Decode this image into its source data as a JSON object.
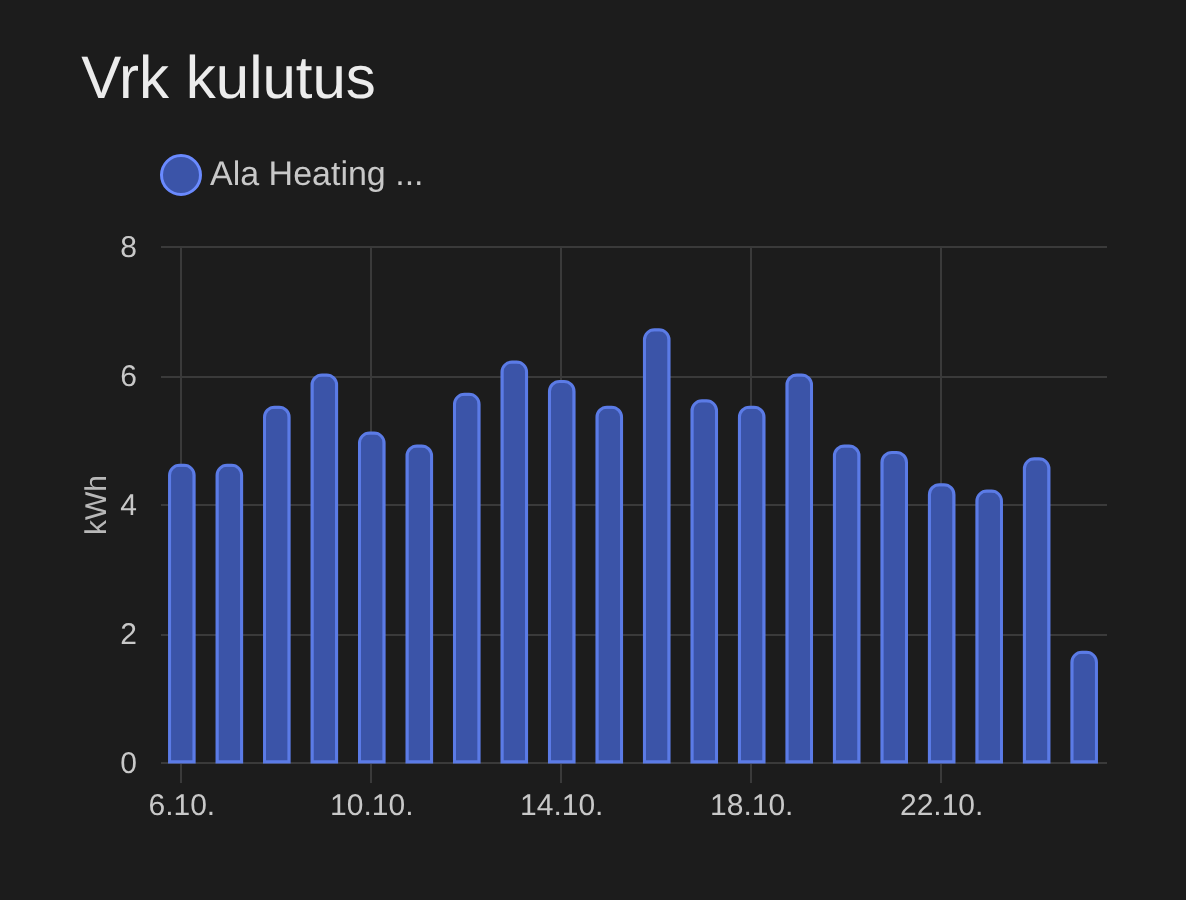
{
  "chart_data": {
    "type": "bar",
    "title": "Vrk kulutus",
    "ylabel": "kWh",
    "categories": [
      "6.10.",
      null,
      null,
      null,
      "10.10.",
      null,
      null,
      null,
      "14.10.",
      null,
      null,
      null,
      "18.10.",
      null,
      null,
      null,
      "22.10.",
      null,
      null,
      null
    ],
    "series": [
      {
        "name": "Ala Heating ...",
        "color": "#3b54a8",
        "values": [
          4.6,
          4.6,
          5.5,
          6.0,
          5.1,
          4.9,
          5.7,
          6.2,
          5.9,
          5.5,
          6.7,
          5.6,
          5.5,
          6.0,
          4.9,
          4.8,
          4.3,
          4.2,
          4.7,
          1.7
        ]
      }
    ],
    "ylim": [
      0,
      8
    ],
    "yticks": [
      0,
      2,
      4,
      6,
      8
    ],
    "grid": true,
    "legend": "top"
  }
}
